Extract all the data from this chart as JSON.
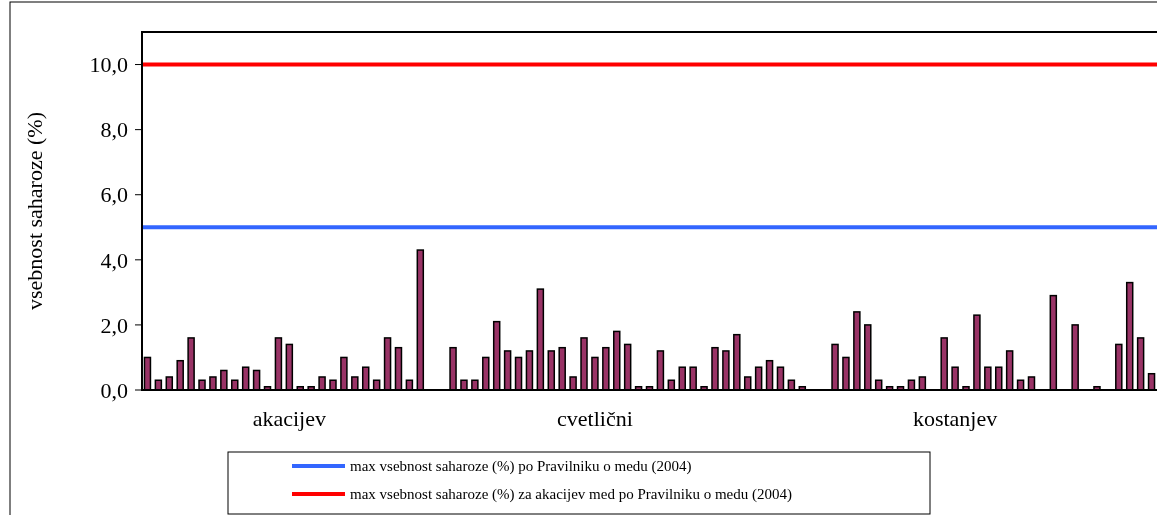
{
  "chart_data": {
    "type": "bar",
    "ylabel": "vsebnost saharoze (%)",
    "categories": [
      null,
      null,
      null,
      null,
      null,
      null,
      null,
      null,
      null,
      null,
      null,
      null,
      null,
      "akacijev",
      null,
      null,
      null,
      null,
      null,
      null,
      null,
      null,
      null,
      null,
      null,
      null,
      null,
      null,
      null,
      null,
      null,
      null,
      null,
      null,
      null,
      null,
      null,
      null,
      null,
      null,
      null,
      "cvetlični",
      null,
      null,
      null,
      null,
      null,
      null,
      null,
      null,
      null,
      null,
      null,
      null,
      null,
      null,
      null,
      null,
      null,
      null,
      null,
      null,
      null,
      null,
      null,
      null,
      null,
      null,
      null,
      null,
      null,
      null,
      null,
      null,
      "kostanjev",
      null,
      null,
      null,
      null,
      null,
      null,
      null,
      null,
      null,
      null,
      null,
      null,
      null,
      null,
      null,
      null,
      null,
      null
    ],
    "values": [
      1.0,
      0.3,
      0.4,
      0.9,
      1.6,
      0.3,
      0.4,
      0.6,
      0.3,
      0.7,
      0.6,
      0.1,
      1.6,
      1.4,
      0.1,
      0.1,
      0.4,
      0.3,
      1.0,
      0.4,
      0.7,
      0.3,
      1.6,
      1.3,
      0.3,
      4.3,
      null,
      null,
      1.3,
      0.3,
      0.3,
      1.0,
      2.1,
      1.2,
      1.0,
      1.2,
      3.1,
      1.2,
      1.3,
      0.4,
      1.6,
      1.0,
      1.3,
      1.8,
      1.4,
      0.1,
      0.1,
      1.2,
      0.3,
      0.7,
      0.7,
      0.1,
      1.3,
      1.2,
      1.7,
      0.4,
      0.7,
      0.9,
      0.7,
      0.3,
      0.1,
      null,
      null,
      1.4,
      1.0,
      2.4,
      2.0,
      0.3,
      0.1,
      0.1,
      0.3,
      0.4,
      null,
      1.6,
      0.7,
      0.1,
      2.3,
      0.7,
      0.7,
      1.2,
      0.3,
      0.4,
      null,
      2.9,
      null,
      2.0,
      null,
      0.1,
      null,
      1.4,
      3.3,
      1.6,
      0.5
    ],
    "color": "#993366",
    "ylim": [
      0,
      11
    ],
    "yticks": [
      {
        "value": 0,
        "label": "0,0"
      },
      {
        "value": 2,
        "label": "2,0"
      },
      {
        "value": 4,
        "label": "4,0"
      },
      {
        "value": 6,
        "label": "6,0"
      },
      {
        "value": 8,
        "label": "8,0"
      },
      {
        "value": 10,
        "label": "10,0"
      }
    ],
    "ref_lines": [
      {
        "axis": "y",
        "value": 5,
        "label": "max vsebnost saharoze (%) po Pravilniku o medu (2004)",
        "color": "#3366ff"
      },
      {
        "axis": "y",
        "value": 10,
        "label": "max vsebnost saharoze (%) za akacijev med po Pravilniku o medu (2004)",
        "color": "#ff0000"
      }
    ],
    "grid": false,
    "legend": "bottom"
  }
}
